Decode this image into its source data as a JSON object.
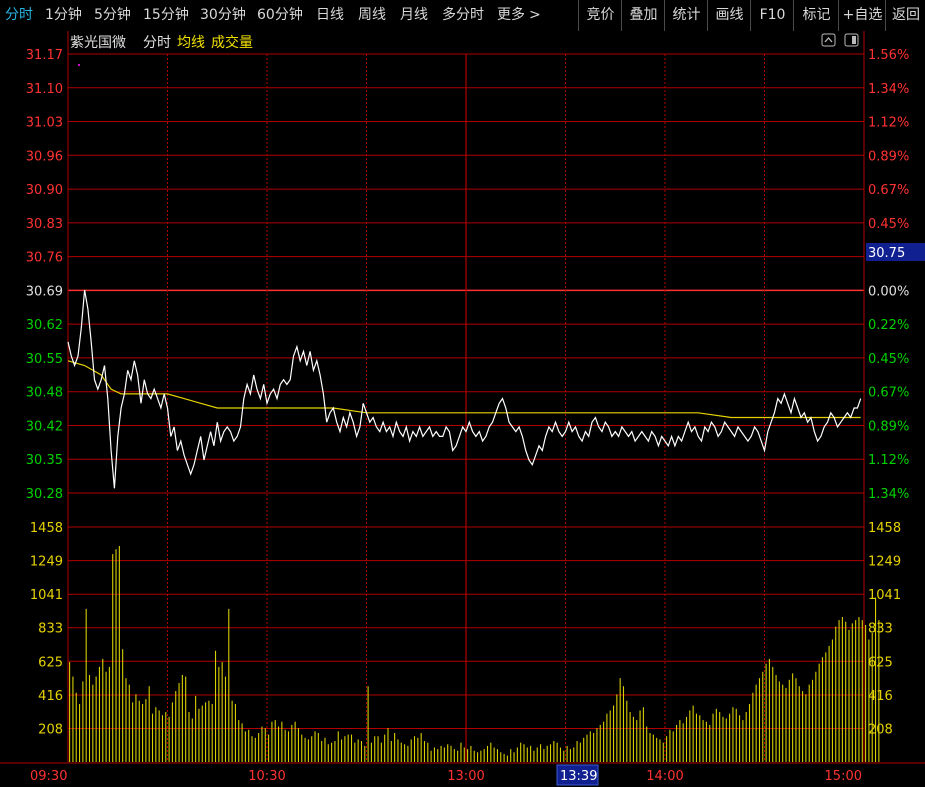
{
  "toolbar": {
    "tabs": [
      "分时",
      "1分钟",
      "5分钟",
      "15分钟",
      "30分钟",
      "60分钟",
      "日线",
      "周线",
      "月线",
      "多分时",
      "更多"
    ],
    "right_buttons": [
      "竞价",
      "叠加",
      "统计",
      "画线",
      "F10",
      "标记",
      "+自选",
      "返回"
    ]
  },
  "chart_header": {
    "stock_name": "紫光国微",
    "mode": "分时",
    "avg_label": "均线",
    "volume_label": "成交量"
  },
  "current_price_tag": "30.75",
  "crosshair_time_tag": "13:39",
  "colors": {
    "price_line": "#ffffff",
    "avg_line": "#e6d200",
    "volume_bars": "#d8d000",
    "up": "#ff3232",
    "down": "#00d200",
    "grid": "#b00000",
    "accent": "#27b3e0"
  },
  "chart_data": {
    "type": "line",
    "prev_close": 30.69,
    "price_ticks": [
      "31.17",
      "31.10",
      "31.03",
      "30.96",
      "30.90",
      "30.83",
      "30.76",
      "30.69",
      "30.62",
      "30.55",
      "30.48",
      "30.42",
      "30.35",
      "30.28"
    ],
    "pct_ticks": [
      "1.56%",
      "1.34%",
      "1.12%",
      "0.89%",
      "0.67%",
      "0.45%",
      "",
      "0.00%",
      "0.22%",
      "0.45%",
      "0.67%",
      "0.89%",
      "1.12%",
      "1.34%"
    ],
    "volume_ticks": [
      "1458",
      "1249",
      "1041",
      "833",
      "625",
      "416",
      "208"
    ],
    "time_ticks": [
      "09:30",
      "10:30",
      "13:00",
      "14:00",
      "15:00"
    ],
    "ylim": [
      30.24,
      31.17
    ],
    "volume_max": 1458,
    "minutes": 240,
    "price_series": {
      "name": "分时",
      "points": [
        [
          0,
          30.56
        ],
        [
          1,
          30.53
        ],
        [
          2,
          30.51
        ],
        [
          3,
          30.53
        ],
        [
          4,
          30.59
        ],
        [
          5,
          30.67
        ],
        [
          6,
          30.63
        ],
        [
          7,
          30.56
        ],
        [
          8,
          30.48
        ],
        [
          9,
          30.46
        ],
        [
          10,
          30.48
        ],
        [
          11,
          30.51
        ],
        [
          12,
          30.44
        ],
        [
          13,
          30.33
        ],
        [
          14,
          30.25
        ],
        [
          15,
          30.36
        ],
        [
          16,
          30.42
        ],
        [
          17,
          30.45
        ],
        [
          18,
          30.5
        ],
        [
          19,
          30.48
        ],
        [
          20,
          30.52
        ],
        [
          21,
          30.49
        ],
        [
          22,
          30.43
        ],
        [
          23,
          30.48
        ],
        [
          24,
          30.45
        ],
        [
          25,
          30.44
        ],
        [
          26,
          30.46
        ],
        [
          27,
          30.44
        ],
        [
          28,
          30.42
        ],
        [
          29,
          30.45
        ],
        [
          30,
          30.42
        ],
        [
          31,
          30.36
        ],
        [
          32,
          30.38
        ],
        [
          33,
          30.33
        ],
        [
          34,
          30.35
        ],
        [
          35,
          30.32
        ],
        [
          36,
          30.3
        ],
        [
          37,
          30.28
        ],
        [
          38,
          30.3
        ],
        [
          39,
          30.33
        ],
        [
          40,
          30.36
        ],
        [
          41,
          30.31
        ],
        [
          42,
          30.34
        ],
        [
          43,
          30.37
        ],
        [
          44,
          30.34
        ],
        [
          45,
          30.39
        ],
        [
          46,
          30.35
        ],
        [
          47,
          30.37
        ],
        [
          48,
          30.38
        ],
        [
          49,
          30.37
        ],
        [
          50,
          30.35
        ],
        [
          51,
          30.36
        ],
        [
          52,
          30.38
        ],
        [
          53,
          30.44
        ],
        [
          54,
          30.47
        ],
        [
          55,
          30.45
        ],
        [
          56,
          30.49
        ],
        [
          57,
          30.46
        ],
        [
          58,
          30.44
        ],
        [
          59,
          30.47
        ],
        [
          60,
          30.43
        ],
        [
          61,
          30.45
        ],
        [
          62,
          30.46
        ],
        [
          63,
          30.44
        ],
        [
          64,
          30.47
        ],
        [
          65,
          30.48
        ],
        [
          66,
          30.47
        ],
        [
          67,
          30.48
        ],
        [
          68,
          30.53
        ],
        [
          69,
          30.55
        ],
        [
          70,
          30.52
        ],
        [
          71,
          30.54
        ],
        [
          72,
          30.51
        ],
        [
          73,
          30.54
        ],
        [
          74,
          30.5
        ],
        [
          75,
          30.52
        ],
        [
          76,
          30.49
        ],
        [
          77,
          30.45
        ],
        [
          78,
          30.39
        ],
        [
          79,
          30.41
        ],
        [
          80,
          30.42
        ],
        [
          81,
          30.39
        ],
        [
          82,
          30.37
        ],
        [
          83,
          30.4
        ],
        [
          84,
          30.38
        ],
        [
          85,
          30.41
        ],
        [
          86,
          30.39
        ],
        [
          87,
          30.36
        ],
        [
          88,
          30.38
        ],
        [
          89,
          30.43
        ],
        [
          90,
          30.41
        ],
        [
          91,
          30.39
        ],
        [
          92,
          30.4
        ],
        [
          93,
          30.38
        ],
        [
          94,
          30.37
        ],
        [
          95,
          30.39
        ],
        [
          96,
          30.37
        ],
        [
          97,
          30.38
        ],
        [
          98,
          30.36
        ],
        [
          99,
          30.39
        ],
        [
          100,
          30.37
        ],
        [
          101,
          30.36
        ],
        [
          102,
          30.38
        ],
        [
          103,
          30.35
        ],
        [
          104,
          30.37
        ],
        [
          105,
          30.36
        ],
        [
          106,
          30.38
        ],
        [
          107,
          30.36
        ],
        [
          108,
          30.37
        ],
        [
          109,
          30.38
        ],
        [
          110,
          30.36
        ],
        [
          111,
          30.37
        ],
        [
          112,
          30.36
        ],
        [
          113,
          30.36
        ],
        [
          114,
          30.38
        ],
        [
          115,
          30.37
        ],
        [
          116,
          30.33
        ],
        [
          117,
          30.34
        ],
        [
          118,
          30.36
        ],
        [
          119,
          30.38
        ],
        [
          120,
          30.37
        ],
        [
          121,
          30.39
        ],
        [
          122,
          30.37
        ],
        [
          123,
          30.36
        ],
        [
          124,
          30.37
        ],
        [
          125,
          30.35
        ],
        [
          126,
          30.36
        ],
        [
          127,
          30.38
        ],
        [
          128,
          30.39
        ],
        [
          129,
          30.41
        ],
        [
          130,
          30.43
        ],
        [
          131,
          30.44
        ],
        [
          132,
          30.42
        ],
        [
          133,
          30.39
        ],
        [
          134,
          30.38
        ],
        [
          135,
          30.37
        ],
        [
          136,
          30.38
        ],
        [
          137,
          30.36
        ],
        [
          138,
          30.33
        ],
        [
          139,
          30.31
        ],
        [
          140,
          30.3
        ],
        [
          141,
          30.32
        ],
        [
          142,
          30.34
        ],
        [
          143,
          30.33
        ],
        [
          144,
          30.36
        ],
        [
          145,
          30.38
        ],
        [
          146,
          30.37
        ],
        [
          147,
          30.39
        ],
        [
          148,
          30.37
        ],
        [
          149,
          30.36
        ],
        [
          150,
          30.37
        ],
        [
          151,
          30.39
        ],
        [
          152,
          30.37
        ],
        [
          153,
          30.38
        ],
        [
          154,
          30.36
        ],
        [
          155,
          30.35
        ],
        [
          156,
          30.37
        ],
        [
          157,
          30.36
        ],
        [
          158,
          30.39
        ],
        [
          159,
          30.4
        ],
        [
          160,
          30.38
        ],
        [
          161,
          30.37
        ],
        [
          162,
          30.39
        ],
        [
          163,
          30.38
        ],
        [
          164,
          30.36
        ],
        [
          165,
          30.37
        ],
        [
          166,
          30.36
        ],
        [
          167,
          30.38
        ],
        [
          168,
          30.37
        ],
        [
          169,
          30.36
        ],
        [
          170,
          30.37
        ],
        [
          171,
          30.35
        ],
        [
          172,
          30.36
        ],
        [
          173,
          30.37
        ],
        [
          174,
          30.36
        ],
        [
          175,
          30.35
        ],
        [
          176,
          30.37
        ],
        [
          177,
          30.36
        ],
        [
          178,
          30.34
        ],
        [
          179,
          30.36
        ],
        [
          180,
          30.35
        ],
        [
          181,
          30.34
        ],
        [
          182,
          30.36
        ],
        [
          183,
          30.34
        ],
        [
          184,
          30.36
        ],
        [
          185,
          30.35
        ],
        [
          186,
          30.37
        ],
        [
          187,
          30.39
        ],
        [
          188,
          30.37
        ],
        [
          189,
          30.38
        ],
        [
          190,
          30.36
        ],
        [
          191,
          30.35
        ],
        [
          192,
          30.38
        ],
        [
          193,
          30.37
        ],
        [
          194,
          30.39
        ],
        [
          195,
          30.38
        ],
        [
          196,
          30.36
        ],
        [
          197,
          30.37
        ],
        [
          198,
          30.39
        ],
        [
          199,
          30.38
        ],
        [
          200,
          30.37
        ],
        [
          201,
          30.36
        ],
        [
          202,
          30.38
        ],
        [
          203,
          30.37
        ],
        [
          204,
          30.36
        ],
        [
          205,
          30.35
        ],
        [
          206,
          30.36
        ],
        [
          207,
          30.38
        ],
        [
          208,
          30.37
        ],
        [
          209,
          30.35
        ],
        [
          210,
          30.33
        ],
        [
          211,
          30.37
        ],
        [
          212,
          30.39
        ],
        [
          213,
          30.41
        ],
        [
          214,
          30.44
        ],
        [
          215,
          30.43
        ],
        [
          216,
          30.45
        ],
        [
          217,
          30.43
        ],
        [
          218,
          30.41
        ],
        [
          219,
          30.44
        ],
        [
          220,
          30.42
        ],
        [
          221,
          30.4
        ],
        [
          222,
          30.41
        ],
        [
          223,
          30.39
        ],
        [
          224,
          30.4
        ],
        [
          225,
          30.37
        ],
        [
          226,
          30.35
        ],
        [
          227,
          30.36
        ],
        [
          228,
          30.38
        ],
        [
          229,
          30.39
        ],
        [
          230,
          30.41
        ],
        [
          231,
          30.4
        ],
        [
          232,
          30.38
        ],
        [
          233,
          30.39
        ],
        [
          234,
          30.4
        ],
        [
          235,
          30.41
        ],
        [
          236,
          30.4
        ],
        [
          237,
          30.42
        ],
        [
          238,
          30.42
        ],
        [
          239,
          30.44
        ]
      ]
    },
    "avg_series": {
      "name": "均线",
      "points": [
        [
          0,
          30.52
        ],
        [
          5,
          30.51
        ],
        [
          10,
          30.49
        ],
        [
          13,
          30.46
        ],
        [
          16,
          30.45
        ],
        [
          20,
          30.45
        ],
        [
          25,
          30.45
        ],
        [
          30,
          30.45
        ],
        [
          35,
          30.44
        ],
        [
          40,
          30.43
        ],
        [
          45,
          30.42
        ],
        [
          50,
          30.42
        ],
        [
          60,
          30.42
        ],
        [
          70,
          30.42
        ],
        [
          80,
          30.42
        ],
        [
          90,
          30.41
        ],
        [
          100,
          30.41
        ],
        [
          110,
          30.41
        ],
        [
          120,
          30.41
        ],
        [
          130,
          30.41
        ],
        [
          140,
          30.41
        ],
        [
          150,
          30.41
        ],
        [
          160,
          30.41
        ],
        [
          170,
          30.41
        ],
        [
          180,
          30.41
        ],
        [
          190,
          30.41
        ],
        [
          200,
          30.4
        ],
        [
          210,
          30.4
        ],
        [
          220,
          30.4
        ],
        [
          230,
          30.4
        ],
        [
          239,
          30.4
        ]
      ]
    },
    "volume_series": {
      "name": "成交量",
      "values": [
        620,
        530,
        430,
        360,
        500,
        950,
        540,
        480,
        530,
        590,
        640,
        560,
        590,
        1290,
        1320,
        1340,
        700,
        520,
        480,
        370,
        420,
        380,
        360,
        390,
        470,
        300,
        340,
        320,
        290,
        310,
        280,
        370,
        440,
        490,
        540,
        530,
        310,
        270,
        410,
        330,
        350,
        370,
        380,
        360,
        690,
        590,
        620,
        530,
        950,
        380,
        360,
        260,
        240,
        190,
        200,
        160,
        150,
        180,
        220,
        210,
        170,
        250,
        260,
        220,
        250,
        200,
        190,
        230,
        250,
        210,
        170,
        150,
        140,
        160,
        190,
        180,
        130,
        150,
        110,
        120,
        130,
        190,
        140,
        160,
        170,
        170,
        120,
        140,
        130,
        100,
        470,
        120,
        160,
        160,
        120,
        170,
        210,
        130,
        180,
        140,
        120,
        110,
        100,
        140,
        160,
        150,
        180,
        130,
        120,
        70,
        90,
        80,
        100,
        90,
        110,
        100,
        80,
        70,
        120,
        90,
        80,
        100,
        70,
        60,
        70,
        80,
        100,
        120,
        90,
        80,
        60,
        50,
        40,
        80,
        60,
        90,
        120,
        110,
        90,
        100,
        70,
        90,
        110,
        80,
        100,
        110,
        130,
        120,
        90,
        70,
        100,
        80,
        90,
        130,
        120,
        150,
        170,
        190,
        180,
        210,
        230,
        250,
        300,
        320,
        350,
        420,
        520,
        470,
        380,
        310,
        280,
        260,
        320,
        340,
        220,
        180,
        170,
        150,
        140,
        120,
        160,
        200,
        190,
        230,
        260,
        240,
        280,
        320,
        350,
        300,
        290,
        260,
        250,
        230,
        300,
        330,
        310,
        280,
        270,
        300,
        340,
        330,
        290,
        260,
        310,
        360,
        430,
        480,
        520,
        560,
        610,
        640,
        590,
        540,
        500,
        480,
        460,
        510,
        550,
        520,
        470,
        440,
        420,
        480,
        510,
        560,
        610,
        650,
        680,
        720,
        760,
        840,
        880,
        900,
        870,
        820,
        860,
        880,
        900,
        880,
        850,
        760,
        800,
        1020,
        880
      ]
    }
  }
}
